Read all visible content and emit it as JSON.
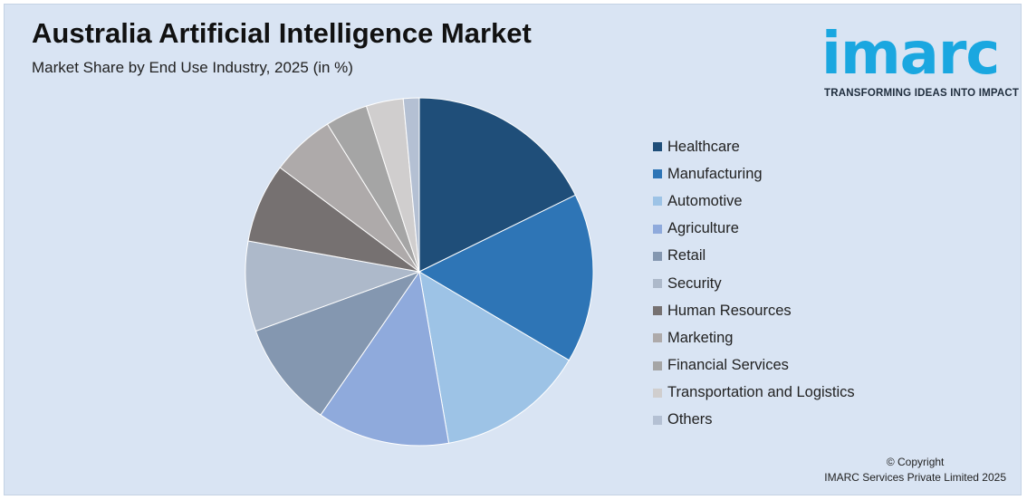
{
  "header": {
    "title": "Australia Artificial Intelligence Market",
    "subtitle": "Market Share by End Use Industry, 2025 (in %)"
  },
  "logo": {
    "wordmark": "imarc",
    "tagline": "TRANSFORMING IDEAS INTO IMPACT",
    "color": "#1aa7e0"
  },
  "chart_data": {
    "type": "pie",
    "title": "Australia Artificial Intelligence Market",
    "subtitle": "Market Share by End Use Industry, 2025 (in %)",
    "legend_position": "right",
    "slices": [
      {
        "label": "Healthcare",
        "value": 18.0,
        "color": "#1f4e79"
      },
      {
        "label": "Manufacturing",
        "value": 16.0,
        "color": "#2e75b6"
      },
      {
        "label": "Automotive",
        "value": 14.0,
        "color": "#9dc3e6"
      },
      {
        "label": "Agriculture",
        "value": 12.5,
        "color": "#8faadc"
      },
      {
        "label": "Retail",
        "value": 10.0,
        "color": "#8497b0"
      },
      {
        "label": "Security",
        "value": 8.5,
        "color": "#adb9ca"
      },
      {
        "label": "Human Resources",
        "value": 7.5,
        "color": "#767171"
      },
      {
        "label": "Marketing",
        "value": 6.0,
        "color": "#aeaaaa"
      },
      {
        "label": "Financial Services",
        "value": 4.0,
        "color": "#a5a5a5"
      },
      {
        "label": "Transportation and Logistics",
        "value": 3.5,
        "color": "#d0cece"
      },
      {
        "label": "Others",
        "value": 1.5,
        "color": "#b4c0d3"
      }
    ]
  },
  "footer": {
    "copyright_line1": "© Copyright",
    "copyright_line2": "IMARC Services Private Limited 2025"
  }
}
